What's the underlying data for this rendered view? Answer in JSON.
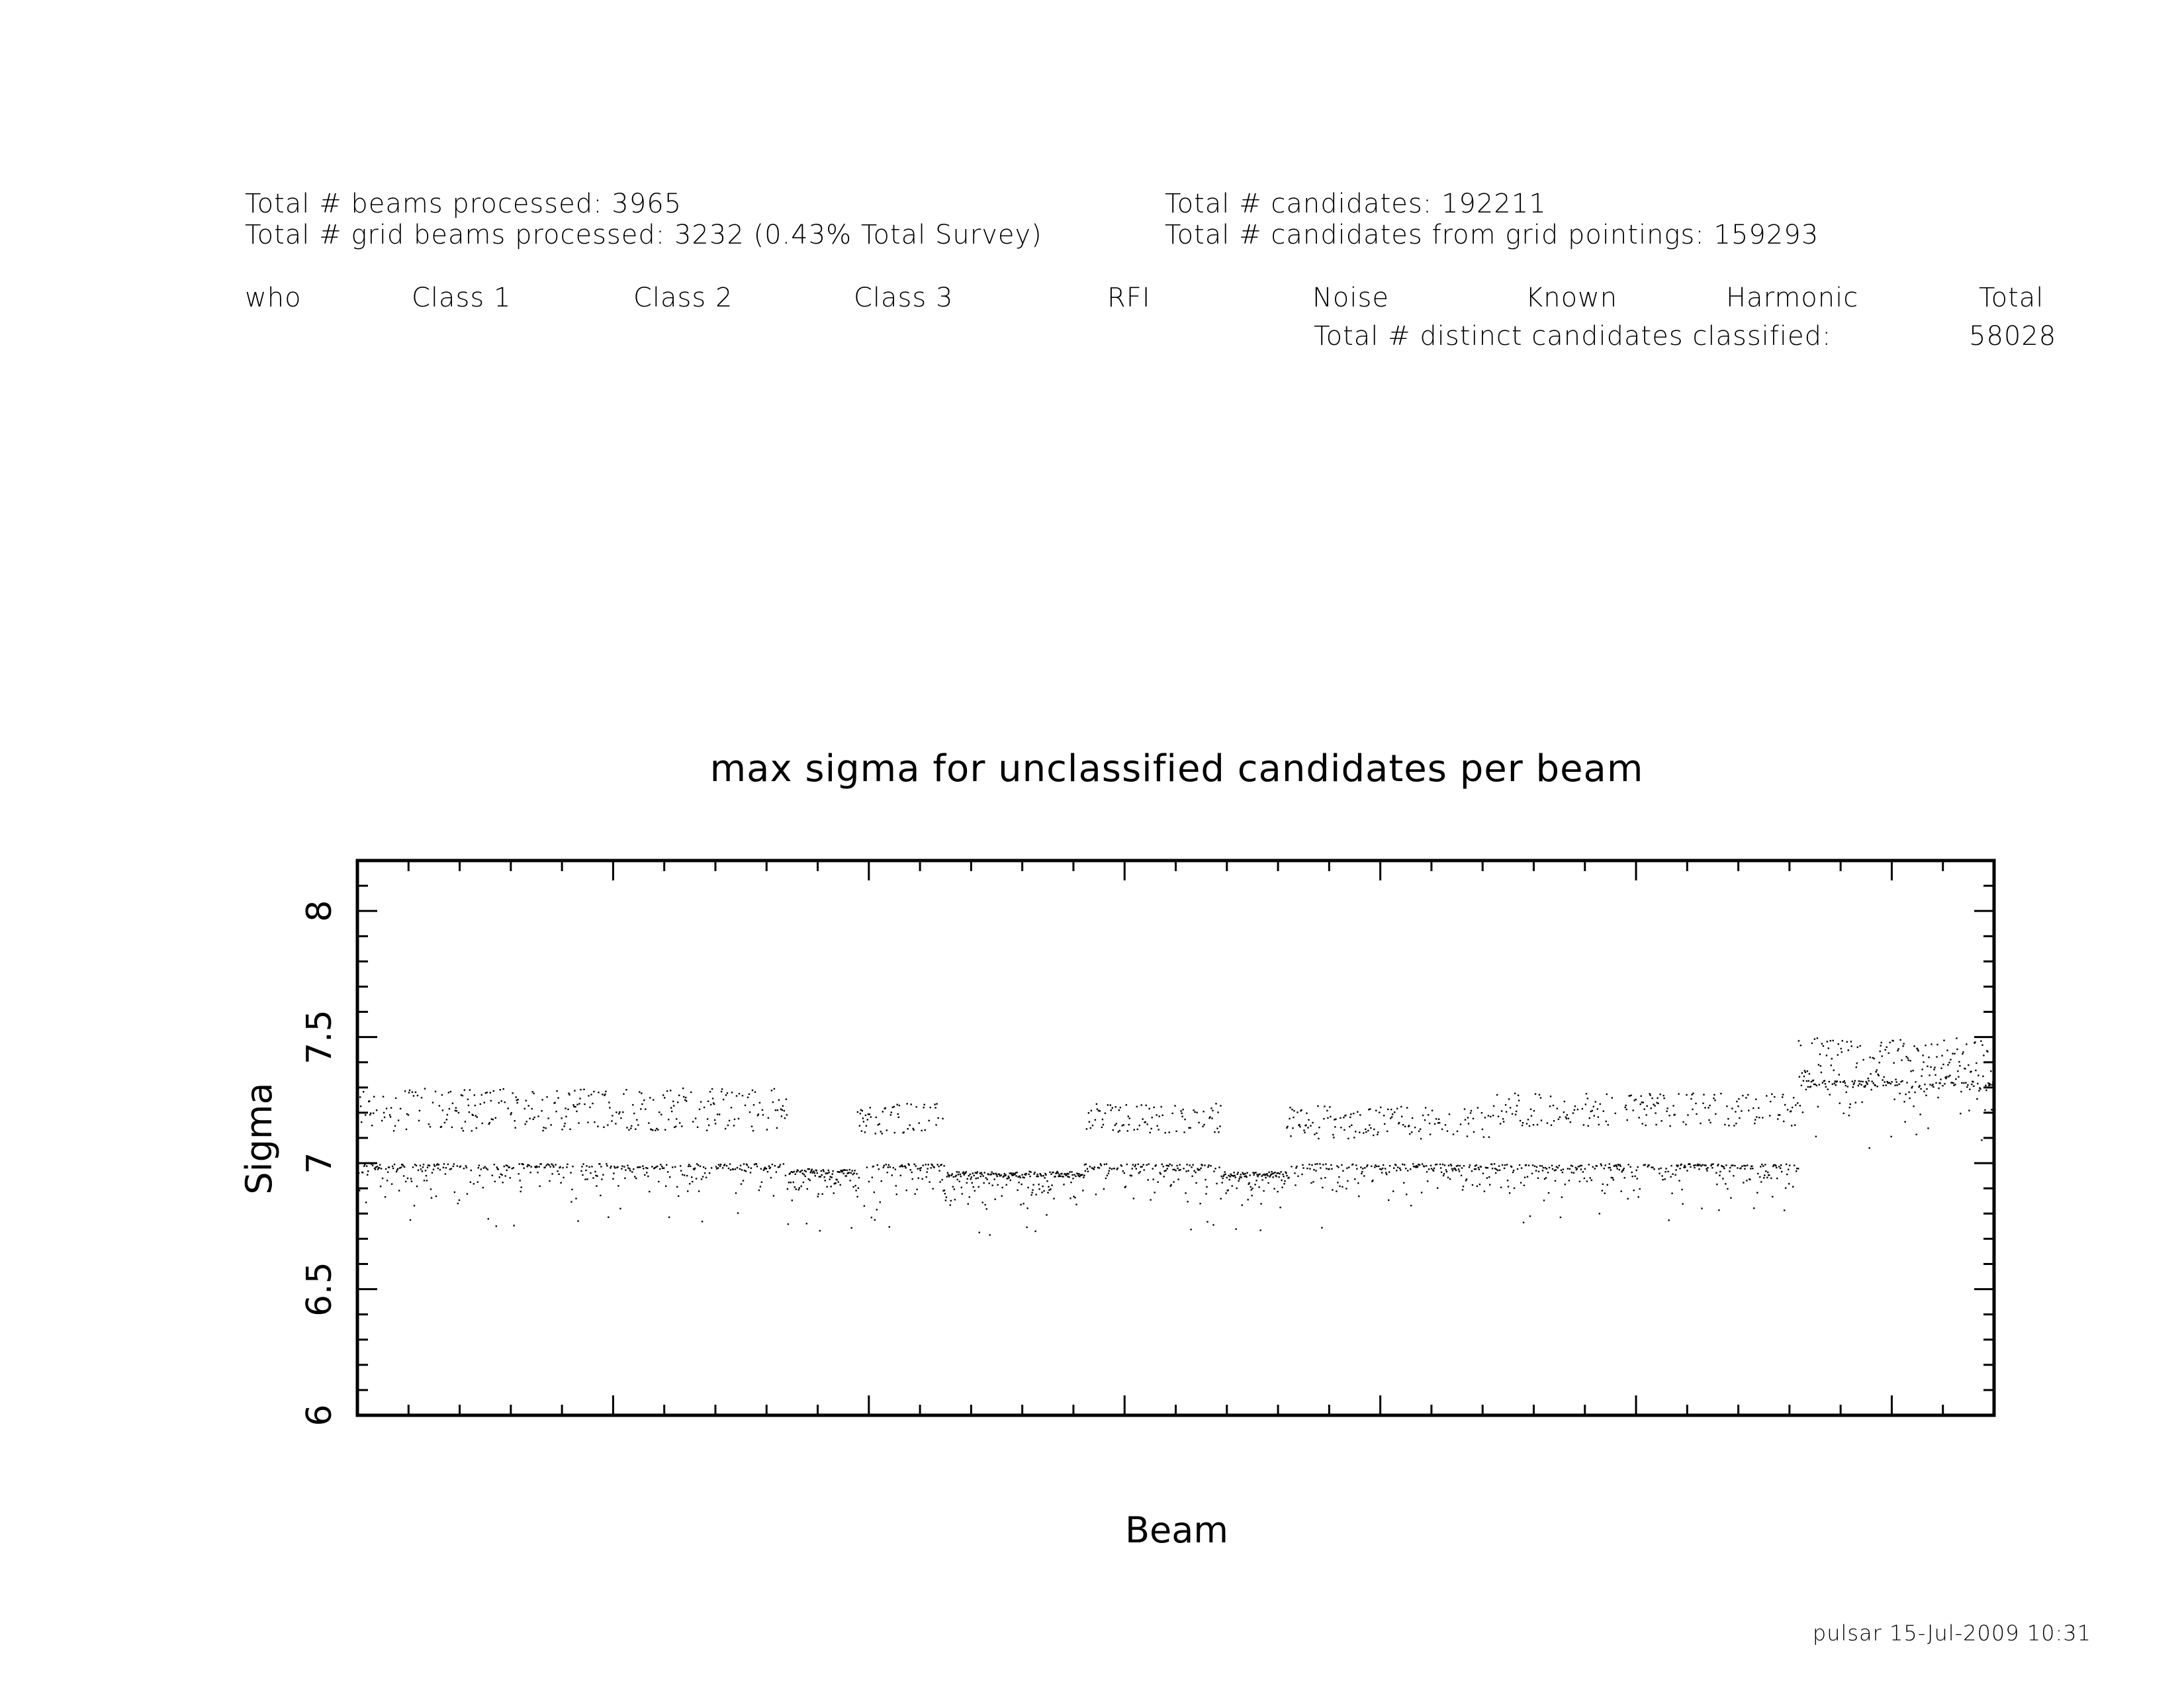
{
  "summary": {
    "beams_processed": "Total # beams processed: 3965",
    "grid_beams_processed": "Total # grid beams processed: 3232 (0.43% Total Survey)",
    "candidates": "Total # candidates: 192211",
    "grid_candidates": "Total # candidates from grid pointings: 159293",
    "distinct_classified_label": "Total # distinct candidates classified:",
    "distinct_classified_value": "58028"
  },
  "columns": [
    "who",
    "Class 1",
    "Class 2",
    "Class 3",
    "RFI",
    "Noise",
    "Known",
    "Harmonic",
    "Total"
  ],
  "footer": "pulsar 15-Jul-2009 10:31",
  "chart_data": {
    "type": "scatter",
    "title": "max sigma for unclassified candidates per beam",
    "xlabel": "Beam",
    "ylabel": "Sigma",
    "xlim": [
      0,
      3965
    ],
    "ylim": [
      6,
      8.2
    ],
    "yticks": [
      "6",
      "6.5",
      "7",
      "7.5",
      "8"
    ],
    "grid": false,
    "marker_color": "#000000",
    "segments": [
      {
        "x_start": 0,
        "x_end": 1040,
        "floor": 7.0,
        "upper_band": [
          7.13,
          7.3
        ]
      },
      {
        "x_start": 1040,
        "x_end": 1210,
        "floor": 6.98,
        "upper_band": null
      },
      {
        "x_start": 1210,
        "x_end": 1420,
        "floor": 7.0,
        "upper_band": [
          7.12,
          7.24
        ]
      },
      {
        "x_start": 1420,
        "x_end": 1760,
        "floor": 6.97,
        "upper_band": null
      },
      {
        "x_start": 1760,
        "x_end": 2090,
        "floor": 7.0,
        "upper_band": [
          7.12,
          7.24
        ]
      },
      {
        "x_start": 2090,
        "x_end": 2250,
        "floor": 6.97,
        "upper_band": null
      },
      {
        "x_start": 2250,
        "x_end": 2740,
        "floor": 7.0,
        "upper_band": [
          7.1,
          7.23
        ]
      },
      {
        "x_start": 2740,
        "x_end": 3490,
        "floor": 7.0,
        "upper_band": [
          7.15,
          7.28
        ]
      },
      {
        "x_start": 3490,
        "x_end": 3965,
        "floor": 7.33,
        "upper_band": [
          7.33,
          7.5
        ]
      }
    ]
  }
}
